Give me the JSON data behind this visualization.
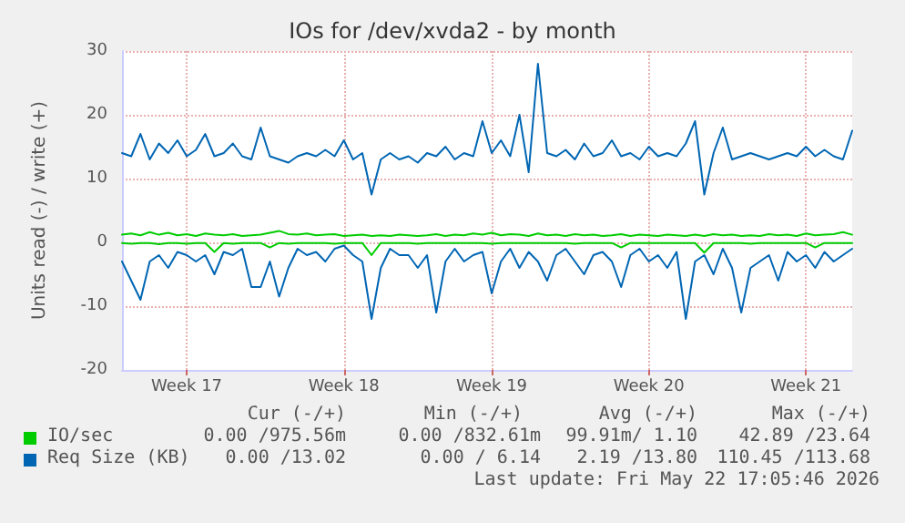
{
  "chart_data": {
    "type": "line",
    "title": "IOs for /dev/xvda2 - by month",
    "ylabel": "Units read (-) / write (+)",
    "categories": [
      null,
      null,
      null,
      null,
      null,
      null,
      null,
      "Week 17",
      null,
      null,
      null,
      null,
      null,
      null,
      null,
      null,
      null,
      null,
      null,
      null,
      null,
      null,
      null,
      null,
      "Week 18",
      null,
      null,
      null,
      null,
      null,
      null,
      null,
      null,
      null,
      null,
      null,
      null,
      null,
      null,
      null,
      "Week 19",
      null,
      null,
      null,
      null,
      null,
      null,
      null,
      null,
      null,
      null,
      null,
      null,
      null,
      null,
      null,
      null,
      "Week 20",
      null,
      null,
      null,
      null,
      null,
      null,
      null,
      null,
      null,
      null,
      null,
      null,
      null,
      null,
      null,
      null,
      "Week 21",
      null,
      null,
      null,
      null,
      null
    ],
    "series": [
      {
        "name": "IO/sec",
        "color": "#00cc00",
        "values": [
          1.2,
          1.4,
          1.1,
          1.6,
          1.2,
          1.5,
          1.1,
          1.3,
          1.0,
          1.4,
          1.2,
          1.1,
          1.3,
          1.0,
          1.1,
          1.2,
          1.5,
          1.8,
          1.3,
          1.2,
          1.4,
          1.1,
          1.2,
          1.3,
          1.0,
          1.1,
          1.2,
          1.0,
          1.1,
          1.0,
          1.2,
          1.1,
          1.0,
          1.1,
          1.3,
          1.0,
          1.2,
          1.1,
          1.4,
          1.2,
          1.5,
          1.1,
          1.3,
          1.2,
          1.0,
          1.4,
          1.1,
          1.2,
          1.0,
          1.3,
          1.1,
          1.2,
          1.0,
          1.1,
          1.3,
          1.0,
          1.2,
          1.1,
          1.0,
          1.2,
          1.1,
          1.0,
          1.2,
          1.0,
          1.3,
          1.1,
          1.2,
          1.0,
          1.1,
          1.0,
          1.3,
          1.1,
          1.2,
          1.0,
          1.4,
          1.1,
          1.2,
          1.3,
          1.6,
          1.2
        ]
      },
      {
        "color": "#00cc00",
        "values": [
          -0.1,
          -0.2,
          -0.1,
          -0.1,
          -0.3,
          -0.1,
          -0.1,
          -0.2,
          -0.1,
          -0.1,
          -1.5,
          -0.1,
          -0.2,
          -0.1,
          -0.1,
          -0.1,
          -0.8,
          -0.1,
          -0.2,
          -0.1,
          -0.1,
          -0.1,
          -0.1,
          -0.2,
          -0.1,
          -0.1,
          -0.1,
          -2.0,
          -0.1,
          -0.1,
          -0.1,
          -0.1,
          -0.2,
          -0.1,
          -0.1,
          -0.1,
          -0.1,
          -0.1,
          -0.1,
          -0.1,
          -0.2,
          -0.1,
          -0.1,
          -0.1,
          -0.1,
          -0.1,
          -0.1,
          -0.1,
          -0.1,
          -0.2,
          -0.1,
          -0.1,
          -0.1,
          -0.1,
          -0.8,
          -0.1,
          -0.1,
          -0.1,
          -0.1,
          -0.1,
          -0.1,
          -0.1,
          -0.1,
          -1.6,
          -0.1,
          -0.1,
          -0.1,
          -0.1,
          -0.2,
          -0.1,
          -0.1,
          -0.1,
          -0.1,
          -0.1,
          -0.1,
          -0.8,
          -0.1,
          -0.1,
          -0.1,
          -0.1
        ]
      },
      {
        "name": "Req Size (KB)",
        "color": "#0066b3",
        "values": [
          14,
          13.5,
          17,
          13,
          15.5,
          14,
          16,
          13.5,
          14.5,
          17,
          13.5,
          14,
          15.5,
          13.5,
          13,
          18,
          13.5,
          13,
          12.5,
          13.5,
          14,
          13.5,
          14.5,
          13.5,
          16,
          13,
          14,
          7.5,
          13,
          14,
          13,
          13.5,
          12.5,
          14,
          13.5,
          15,
          13,
          14,
          13.5,
          19,
          14,
          16,
          13.5,
          20,
          11,
          28,
          14,
          13.5,
          14.5,
          13,
          15.5,
          13.5,
          14,
          16,
          13.5,
          14,
          13,
          15,
          13.5,
          14,
          13.5,
          15.5,
          19,
          7.5,
          14,
          18,
          13,
          13.5,
          14,
          13.5,
          13,
          13.5,
          14,
          13.5,
          15,
          13.5,
          14.5,
          13.5,
          13,
          17.5
        ]
      },
      {
        "color": "#0066b3",
        "values": [
          -3,
          -6,
          -9,
          -3,
          -2,
          -4,
          -1.5,
          -2,
          -3,
          -2,
          -5,
          -1.5,
          -2,
          -1,
          -7,
          -7,
          -3,
          -8.5,
          -4,
          -1,
          -2,
          -1.5,
          -3,
          -1,
          -0.5,
          -2,
          -3,
          -12,
          -4,
          -1,
          -2,
          -2,
          -4,
          -2,
          -11,
          -3,
          -1,
          -3,
          -2,
          -1.5,
          -8,
          -3,
          -1,
          -4,
          -1.5,
          -3,
          -6,
          -2,
          -1,
          -3,
          -5,
          -2,
          -1.5,
          -3,
          -7,
          -2,
          -1,
          -3,
          -2,
          -4,
          -1.5,
          -12,
          -3,
          -2,
          -5,
          -1,
          -4,
          -11,
          -4,
          -3,
          -2,
          -6,
          -1.5,
          -3,
          -2,
          -4,
          -1.5,
          -3,
          -2,
          -1
        ]
      }
    ],
    "ylim": [
      -20,
      30
    ],
    "yticks": [
      -20,
      -10,
      0,
      10,
      20,
      30
    ],
    "grid": true,
    "legend": "bottom",
    "marker": "none",
    "line_style": "solid",
    "annotations": [
      "Cur (-/+)",
      "Min (-/+)",
      "Avg (-/+)",
      "Max (-/+)",
      "0.00 /975.56m",
      "0.00 /832.61m",
      "99.91m/ 1.10",
      "42.89 /23.64",
      "0.00 /13.02",
      "0.00 / 6.14",
      "2.19 /13.80",
      "110.45 /113.68",
      "Last update: Fri May 22 17:05:46 2026"
    ]
  }
}
